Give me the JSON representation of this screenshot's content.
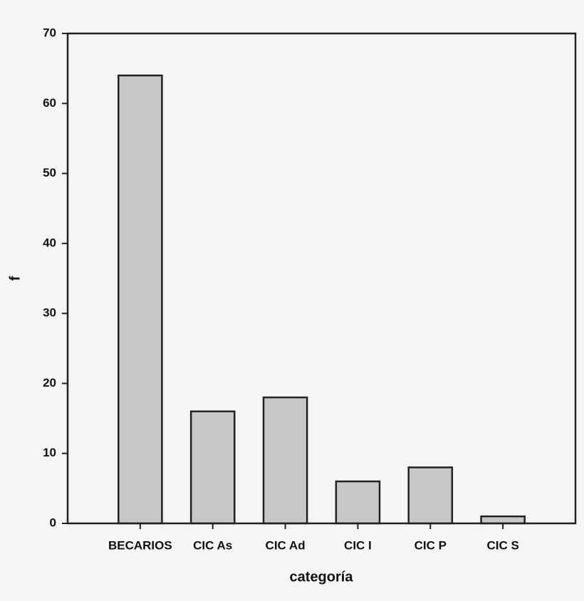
{
  "chart_data": {
    "type": "bar",
    "xlabel": "categoría",
    "ylabel": "f",
    "categories": [
      "BECARIOS",
      "CIC As",
      "CIC Ad",
      "CIC I",
      "CIC P",
      "CIC S"
    ],
    "values": [
      64,
      16,
      18,
      6,
      8,
      1
    ],
    "color": "#c8c8c8",
    "ylim": [
      0,
      70
    ],
    "yticks": [
      0,
      10,
      20,
      30,
      40,
      50,
      60,
      70
    ],
    "grid": false
  }
}
